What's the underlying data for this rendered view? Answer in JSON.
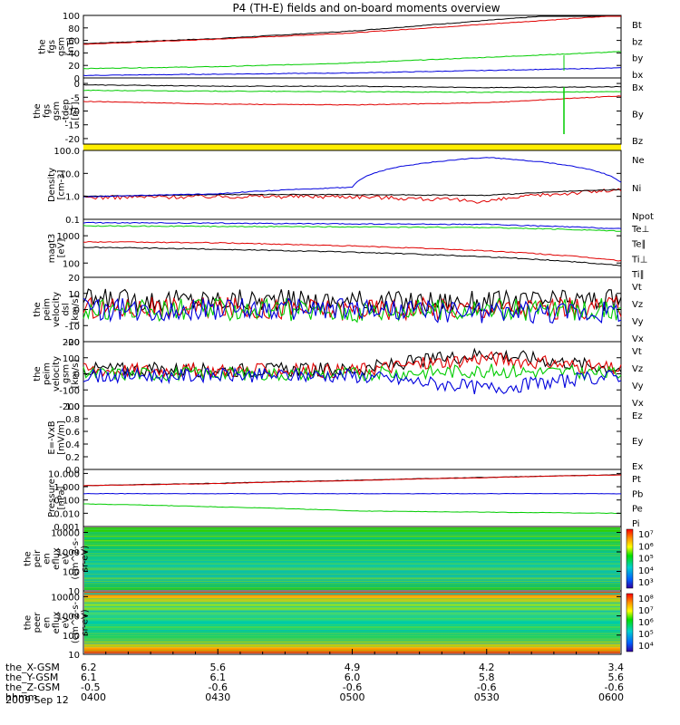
{
  "title": "P4 (TH-E) fields and on-board moments overview",
  "date": "2009 Sep 12",
  "colors": {
    "black": "#000000",
    "red": "#e00000",
    "green": "#00cc00",
    "blue": "#0000dd",
    "yellow": "#ffee00"
  },
  "chart_data": {
    "type": "line",
    "time_axis": {
      "rows": [
        {
          "label": "the_X-GSM",
          "values": [
            "6.2",
            "5.6",
            "4.9",
            "4.2",
            "3.4"
          ]
        },
        {
          "label": "the_Y-GSM",
          "values": [
            "6.1",
            "6.1",
            "6.0",
            "5.8",
            "5.6"
          ]
        },
        {
          "label": "the_Z-GSM",
          "values": [
            "-0.5",
            "-0.6",
            "-0.6",
            "-0.6",
            "-0.6"
          ]
        },
        {
          "label": "hhmm",
          "values": [
            "0400",
            "0430",
            "0500",
            "0530",
            "0600"
          ]
        }
      ]
    },
    "panels": [
      {
        "id": "p1",
        "ylabel": [
          "the",
          "fgs",
          "gsm",
          "[nT]"
        ],
        "ylim": [
          0,
          100
        ],
        "ticks": [
          "100",
          "80",
          "60",
          "40",
          "20",
          "0"
        ],
        "series": [
          {
            "name": "Bt",
            "color": "black",
            "x": [
              "0400",
              "0430",
              "0500",
              "0530",
              "0600"
            ],
            "values": [
              55,
              63,
              75,
              92,
              108
            ]
          },
          {
            "name": "bz",
            "color": "red",
            "x": [
              "0400",
              "0430",
              "0500",
              "0530",
              "0600"
            ],
            "values": [
              54,
              62,
              72,
              86,
              100
            ]
          },
          {
            "name": "by",
            "color": "green",
            "x": [
              "0400",
              "0430",
              "0500",
              "0530",
              "0600"
            ],
            "values": [
              15,
              18,
              24,
              33,
              42
            ]
          },
          {
            "name": "bx",
            "color": "blue",
            "x": [
              "0400",
              "0430",
              "0500",
              "0530",
              "0600"
            ],
            "values": [
              4,
              6,
              8,
              12,
              16
            ]
          }
        ]
      },
      {
        "id": "p2",
        "ylabel": [
          "the",
          "fgs",
          "gsm",
          "-tdep",
          "[nT]"
        ],
        "ylim": [
          -22,
          2
        ],
        "ticks": [
          "0",
          "-5",
          "-10",
          "-15",
          "-20"
        ],
        "series": [
          {
            "name": "Bx",
            "color": "black",
            "x": [
              "0400",
              "0430",
              "0500",
              "0530",
              "0600"
            ],
            "values": [
              -0.5,
              -1,
              -1,
              -1.5,
              -1.2
            ]
          },
          {
            "name": "By",
            "color": "green",
            "x": [
              "0400",
              "0430",
              "0500",
              "0530",
              "0600"
            ],
            "values": [
              -2.5,
              -2.8,
              -3,
              -3.2,
              -3
            ]
          },
          {
            "name": "Bz",
            "color": "red",
            "x": [
              "0400",
              "0430",
              "0500",
              "0530",
              "0600"
            ],
            "values": [
              -6.5,
              -7.5,
              -7.8,
              -7,
              -4.5
            ]
          }
        ]
      },
      {
        "id": "p3",
        "ylabel": [
          "Density",
          "[cm-3]"
        ],
        "scale": "log",
        "ylim": [
          0.1,
          100
        ],
        "ticks": [
          "100.0",
          "10.0",
          "1.0",
          "0.1"
        ],
        "series": [
          {
            "name": "Ne",
            "color": "red",
            "x": [
              "0400",
              "0430",
              "0500",
              "0530",
              "0600"
            ],
            "values": [
              0.9,
              1.0,
              1.0,
              0.6,
              1.9
            ]
          },
          {
            "name": "Ni",
            "color": "black",
            "x": [
              "0400",
              "0430",
              "0500",
              "0530",
              "0600"
            ],
            "values": [
              1.0,
              1.2,
              1.2,
              1.1,
              2.0
            ]
          },
          {
            "name": "Npot",
            "color": "blue",
            "x": [
              "0400",
              "0430",
              "0500",
              "0530",
              "0600"
            ],
            "values": [
              0.95,
              1.3,
              2.5,
              50,
              4
            ]
          }
        ]
      },
      {
        "id": "p4",
        "ylabel": [
          "magt3",
          "[eV]"
        ],
        "scale": "log",
        "ylim": [
          30,
          4000
        ],
        "ticks": [
          "1000",
          "100"
        ],
        "series": [
          {
            "name": "Te⊥",
            "color": "red",
            "x": [
              "0400",
              "0430",
              "0500",
              "0530",
              "0600"
            ],
            "values": [
              600,
              550,
              420,
              280,
              120
            ]
          },
          {
            "name": "Te∥",
            "color": "black",
            "x": [
              "0400",
              "0430",
              "0500",
              "0530",
              "0600"
            ],
            "values": [
              380,
              320,
              250,
              170,
              80
            ]
          },
          {
            "name": "Ti⊥",
            "color": "blue",
            "x": [
              "0400",
              "0430",
              "0500",
              "0530",
              "0600"
            ],
            "values": [
              3000,
              2900,
              2700,
              2600,
              1800
            ]
          },
          {
            "name": "Ti∥",
            "color": "green",
            "x": [
              "0400",
              "0430",
              "0500",
              "0530",
              "0600"
            ],
            "values": [
              2300,
              2200,
              2100,
              2000,
              1500
            ]
          }
        ]
      },
      {
        "id": "p5",
        "ylabel": [
          "the",
          "peim",
          "velocity",
          "dsl",
          "[km/s]"
        ],
        "ylim": [
          -20,
          20
        ],
        "ticks": [
          "20",
          "10",
          "0",
          "-10",
          "-20"
        ],
        "series": [
          {
            "name": "Vt",
            "color": "black",
            "x": [
              "0400",
              "0430",
              "0500",
              "0530",
              "0600"
            ],
            "values": [
              6,
              6,
              5,
              5,
              6
            ]
          },
          {
            "name": "Vz",
            "color": "red",
            "x": [
              "0400",
              "0430",
              "0500",
              "0530",
              "0600"
            ],
            "values": [
              1,
              1,
              0,
              1,
              1
            ]
          },
          {
            "name": "Vy",
            "color": "green",
            "x": [
              "0400",
              "0430",
              "0500",
              "0530",
              "0600"
            ],
            "values": [
              0,
              0,
              -1,
              0,
              0
            ]
          },
          {
            "name": "Vx",
            "color": "blue",
            "x": [
              "0400",
              "0430",
              "0500",
              "0530",
              "0600"
            ],
            "values": [
              0,
              0,
              0,
              -2,
              -1
            ]
          }
        ]
      },
      {
        "id": "p6",
        "ylabel": [
          "the",
          "peim",
          "velocity",
          "gsm",
          "[km/s]"
        ],
        "ylim": [
          -200,
          200
        ],
        "ticks": [
          "200",
          "100",
          "0",
          "-100",
          "-200"
        ],
        "series": [
          {
            "name": "Vt",
            "color": "black",
            "x": [
              "0400",
              "0430",
              "0500",
              "0530",
              "0600"
            ],
            "values": [
              30,
              25,
              25,
              130,
              30
            ]
          },
          {
            "name": "Vz",
            "color": "red",
            "x": [
              "0400",
              "0430",
              "0500",
              "0530",
              "0600"
            ],
            "values": [
              25,
              20,
              20,
              100,
              25
            ]
          },
          {
            "name": "Vy",
            "color": "green",
            "x": [
              "0400",
              "0430",
              "0500",
              "0530",
              "0600"
            ],
            "values": [
              0,
              0,
              0,
              20,
              0
            ]
          },
          {
            "name": "Vx",
            "color": "blue",
            "x": [
              "0400",
              "0430",
              "0500",
              "0530",
              "0600"
            ],
            "values": [
              -10,
              -10,
              -10,
              -90,
              -10
            ]
          }
        ]
      },
      {
        "id": "p7",
        "ylabel": [
          "E=-VxB",
          "[mV/m]"
        ],
        "ylim": [
          0,
          1
        ],
        "ticks": [
          "1.0",
          "0.8",
          "0.6",
          "0.4",
          "0.2",
          "0.0"
        ],
        "series": [
          {
            "name": "Ez",
            "color": "red"
          },
          {
            "name": "Ey",
            "color": "green"
          },
          {
            "name": "Ex",
            "color": "blue"
          }
        ]
      },
      {
        "id": "p8",
        "ylabel": [
          "Pressure",
          "[nPa]"
        ],
        "scale": "log",
        "ylim": [
          0.001,
          20
        ],
        "ticks": [
          "10.000",
          "1.000",
          "0.100",
          "0.010",
          "0.001"
        ],
        "series": [
          {
            "name": "Pt",
            "color": "black",
            "x": [
              "0400",
              "0430",
              "0500",
              "0530",
              "0600"
            ],
            "values": [
              1.2,
              1.8,
              3,
              5,
              8
            ]
          },
          {
            "name": "Pb",
            "color": "red",
            "x": [
              "0400",
              "0430",
              "0500",
              "0530",
              "0600"
            ],
            "values": [
              1.2,
              1.7,
              2.9,
              4.8,
              7.8
            ]
          },
          {
            "name": "Pe",
            "color": "green",
            "x": [
              "0400",
              "0430",
              "0500",
              "0530",
              "0600"
            ],
            "values": [
              0.05,
              0.03,
              0.015,
              0.012,
              0.01
            ]
          },
          {
            "name": "Pi",
            "color": "blue",
            "x": [
              "0400",
              "0430",
              "0500",
              "0530",
              "0600"
            ],
            "values": [
              0.3,
              0.3,
              0.3,
              0.3,
              0.3
            ]
          }
        ]
      },
      {
        "id": "p9",
        "type": "heatmap",
        "ylabel": [
          "the",
          "peir",
          "en",
          "eflux",
          "eV",
          "(cm^2-s-",
          "sr-eV)"
        ],
        "scale": "log",
        "ylim": [
          10,
          20000
        ],
        "ticks": [
          "10000",
          "1000",
          "100",
          "10"
        ],
        "colorbar": [
          "10^7",
          "10^6",
          "10^5",
          "10^4",
          "10^3"
        ]
      },
      {
        "id": "p10",
        "type": "heatmap",
        "ylabel": [
          "the",
          "peer",
          "en",
          "eflux",
          "eV",
          "(cm^2-s-",
          "sr-eV)"
        ],
        "scale": "log",
        "ylim": [
          10,
          20000
        ],
        "ticks": [
          "10000",
          "1000",
          "100",
          "10"
        ],
        "colorbar": [
          "10^8",
          "10^7",
          "10^6",
          "10^5",
          "10^4"
        ]
      }
    ]
  }
}
